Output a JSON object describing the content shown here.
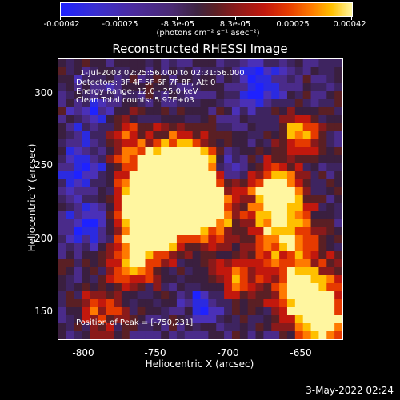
{
  "colorbar": {
    "ticks": [
      "-0.00042",
      "-0.00025",
      "-8.3e-05",
      "8.3e-05",
      "0.00025",
      "0.00042"
    ],
    "units": "(photons cm⁻² s⁻¹ asec⁻²)",
    "colors": [
      "#1e22ff",
      "#4b2b9e",
      "#3e2440",
      "#8a1a1a",
      "#ff7a00",
      "#fff6a0"
    ]
  },
  "title": "Reconstructed RHESSI Image",
  "annotations": {
    "time_range": "1-Jul-2003 02:25:56.000 to 02:31:56.000",
    "detectors": "Detectors: 3F 4F 5F 6F 7F 8F, Att 0",
    "energy": "Energy Range: 12.0 - 25.0 keV",
    "clean": "Clean    Total counts: 5.97E+03",
    "peak": "Position of Peak = [-750,231]"
  },
  "y_axis": {
    "label": "Heliocentric Y (arcsec)",
    "ticks": [
      "300",
      "250",
      "200",
      "150"
    ]
  },
  "x_axis": {
    "label": "Heliocentric X (arcsec)",
    "ticks": [
      "-800",
      "-750",
      "-700",
      "-650"
    ]
  },
  "datestamp": "3-May-2022 02:24"
}
